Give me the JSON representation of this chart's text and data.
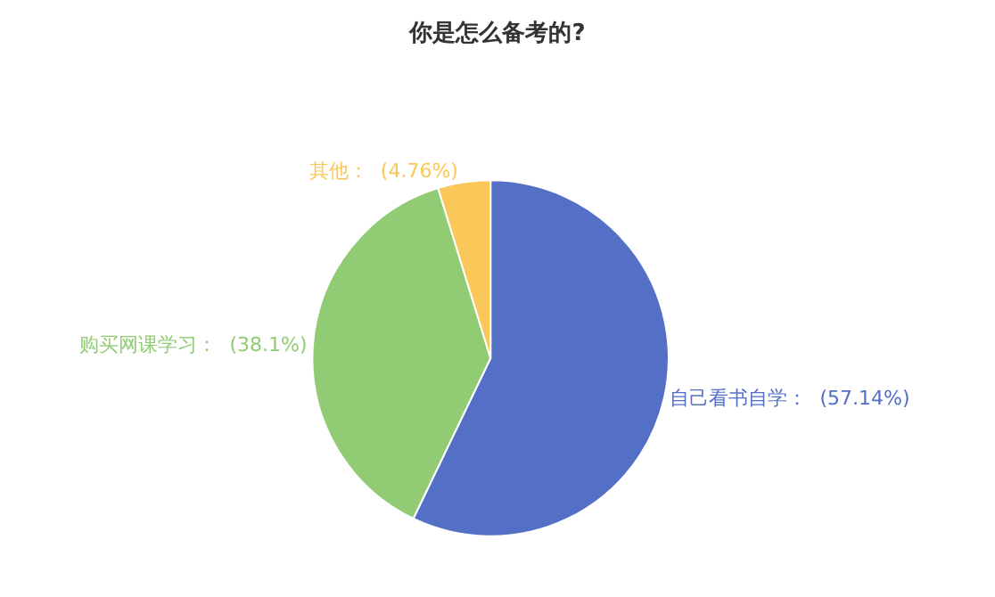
{
  "chart_data": {
    "type": "pie",
    "title": "你是怎么备考的?",
    "categories": [
      "自己看书自学",
      "购买网课学习",
      "其他"
    ],
    "values": [
      57.14,
      38.1,
      4.76
    ],
    "colors": [
      "#5470c6",
      "#91cc75",
      "#fac858"
    ],
    "value_labels": [
      "(57.14%)",
      "(38.1%)",
      "(4.76%)"
    ],
    "legend": false
  }
}
